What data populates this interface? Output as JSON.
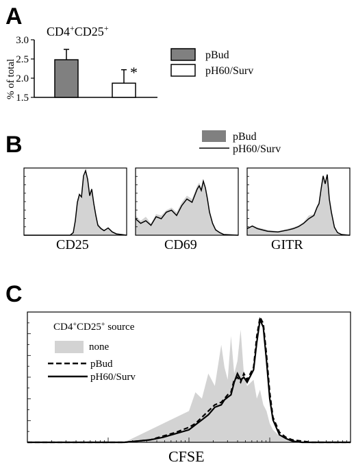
{
  "figure": {
    "panel_labels": [
      "A",
      "B",
      "C"
    ]
  },
  "panel_a": {
    "title_base1": "CD4",
    "title_sup1": "+",
    "title_base2": "CD25",
    "title_sup2": "+",
    "ylabel": "% of total",
    "significance_marker": "*",
    "legend": [
      "pBud",
      "pH60/Surv"
    ]
  },
  "panel_b": {
    "legend": [
      "pBud",
      "pH60/Surv"
    ],
    "histograms": [
      "CD25",
      "CD69",
      "GITR"
    ]
  },
  "panel_c": {
    "legend_title_base1": "CD4",
    "legend_title_sup1": "+",
    "legend_title_base2": "CD25",
    "legend_title_sup2": "+",
    "legend_title_rest": " source",
    "legend": [
      "none",
      "pBud",
      "pH60/Surv"
    ],
    "xlabel": "CFSE"
  },
  "colors": {
    "pBud_bar": "#808080",
    "pH60_bar": "#ffffff",
    "histogram_fill": "#d3d3d3",
    "line": "#000000"
  },
  "chart_data": [
    {
      "type": "bar",
      "title": "CD4+CD25+",
      "ylabel": "% of total",
      "categories": [
        "pBud",
        "pH60/Surv"
      ],
      "values": [
        2.48,
        1.87
      ],
      "errors": [
        0.27,
        0.35
      ],
      "ylim": [
        1.5,
        3.0
      ],
      "yticks": [
        1.5,
        2.0,
        2.5,
        3.0
      ],
      "annotations": [
        "*"
      ],
      "legend": "right"
    },
    {
      "type": "area",
      "panel": "B",
      "histograms": [
        {
          "xlabel": "CD25",
          "x": [
            0,
            0.45,
            0.48,
            0.5,
            0.52,
            0.54,
            0.56,
            0.58,
            0.6,
            0.62,
            0.64,
            0.66,
            0.68,
            0.7,
            0.72,
            0.75,
            0.78,
            0.82,
            0.86,
            0.9,
            0.95,
            1
          ],
          "series": [
            {
              "name": "pBud",
              "values": [
                0,
                0,
                0.05,
                0.25,
                0.55,
                0.6,
                0.55,
                0.85,
                0.95,
                0.88,
                0.65,
                0.72,
                0.5,
                0.35,
                0.18,
                0.12,
                0.08,
                0.1,
                0.06,
                0.03,
                0.01,
                0
              ]
            },
            {
              "name": "pH60/Surv",
              "values": [
                0,
                0,
                0.04,
                0.22,
                0.5,
                0.62,
                0.58,
                0.9,
                0.98,
                0.85,
                0.6,
                0.7,
                0.48,
                0.3,
                0.15,
                0.1,
                0.07,
                0.11,
                0.05,
                0.02,
                0.01,
                0
              ]
            }
          ]
        },
        {
          "xlabel": "CD69",
          "x": [
            0,
            0.05,
            0.1,
            0.15,
            0.2,
            0.25,
            0.3,
            0.35,
            0.4,
            0.45,
            0.5,
            0.55,
            0.6,
            0.62,
            0.64,
            0.66,
            0.68,
            0.7,
            0.72,
            0.75,
            0.78,
            0.82,
            0.86,
            1
          ],
          "series": [
            {
              "name": "pBud",
              "values": [
                0.3,
                0.22,
                0.28,
                0.18,
                0.32,
                0.3,
                0.38,
                0.42,
                0.35,
                0.5,
                0.6,
                0.55,
                0.75,
                0.8,
                0.72,
                0.85,
                0.7,
                0.6,
                0.4,
                0.2,
                0.1,
                0.05,
                0.02,
                0
              ]
            },
            {
              "name": "pH60/Surv",
              "values": [
                0.25,
                0.18,
                0.22,
                0.15,
                0.28,
                0.25,
                0.35,
                0.38,
                0.3,
                0.45,
                0.55,
                0.5,
                0.7,
                0.75,
                0.68,
                0.82,
                0.72,
                0.55,
                0.35,
                0.18,
                0.08,
                0.04,
                0.01,
                0
              ]
            }
          ]
        },
        {
          "xlabel": "GITR",
          "x": [
            0,
            0.05,
            0.1,
            0.2,
            0.3,
            0.4,
            0.45,
            0.5,
            0.55,
            0.6,
            0.65,
            0.68,
            0.7,
            0.72,
            0.74,
            0.76,
            0.78,
            0.8,
            0.82,
            0.85,
            0.88,
            0.92,
            1
          ],
          "series": [
            {
              "name": "pBud",
              "values": [
                0.08,
                0.15,
                0.12,
                0.08,
                0.06,
                0.1,
                0.12,
                0.15,
                0.2,
                0.3,
                0.32,
                0.45,
                0.5,
                0.75,
                0.92,
                0.8,
                0.95,
                0.6,
                0.4,
                0.15,
                0.05,
                0.02,
                0
              ]
            },
            {
              "name": "pH60/Surv",
              "values": [
                0.1,
                0.14,
                0.1,
                0.06,
                0.05,
                0.08,
                0.1,
                0.13,
                0.18,
                0.25,
                0.3,
                0.42,
                0.48,
                0.7,
                0.9,
                0.78,
                0.92,
                0.55,
                0.35,
                0.12,
                0.04,
                0.01,
                0
              ]
            }
          ]
        }
      ]
    },
    {
      "type": "area",
      "panel": "C",
      "xlabel": "CFSE",
      "x": [
        0,
        0.3,
        0.34,
        0.38,
        0.42,
        0.46,
        0.5,
        0.52,
        0.54,
        0.56,
        0.58,
        0.6,
        0.61,
        0.62,
        0.63,
        0.64,
        0.65,
        0.66,
        0.67,
        0.68,
        0.7,
        0.71,
        0.72,
        0.73,
        0.74,
        0.75,
        0.76,
        0.78,
        0.8,
        0.82,
        0.85,
        0.88,
        0.92,
        1
      ],
      "series": [
        {
          "name": "none",
          "values": [
            0,
            0,
            0.05,
            0.1,
            0.15,
            0.2,
            0.25,
            0.4,
            0.35,
            0.55,
            0.45,
            0.78,
            0.6,
            0.5,
            0.85,
            0.55,
            0.65,
            0.9,
            0.55,
            0.45,
            0.5,
            0.35,
            0.42,
            0.3,
            0.25,
            0.15,
            0.1,
            0.05,
            0.02,
            0.01,
            0,
            0,
            0,
            0
          ]
        },
        {
          "name": "pBud",
          "values": [
            0,
            0,
            0.01,
            0.02,
            0.05,
            0.08,
            0.12,
            0.15,
            0.2,
            0.25,
            0.3,
            0.32,
            0.35,
            0.38,
            0.4,
            0.5,
            0.52,
            0.48,
            0.55,
            0.5,
            0.6,
            0.85,
            1.0,
            0.95,
            0.7,
            0.4,
            0.2,
            0.08,
            0.04,
            0.02,
            0.01,
            0,
            0,
            0
          ]
        },
        {
          "name": "pH60/Surv",
          "values": [
            0,
            0,
            0.01,
            0.02,
            0.04,
            0.07,
            0.1,
            0.14,
            0.18,
            0.22,
            0.28,
            0.3,
            0.34,
            0.36,
            0.38,
            0.48,
            0.55,
            0.5,
            0.52,
            0.48,
            0.58,
            0.8,
            0.98,
            0.92,
            0.65,
            0.35,
            0.18,
            0.06,
            0.03,
            0.01,
            0,
            0,
            0,
            0
          ]
        }
      ],
      "legend": "top-left"
    }
  ]
}
